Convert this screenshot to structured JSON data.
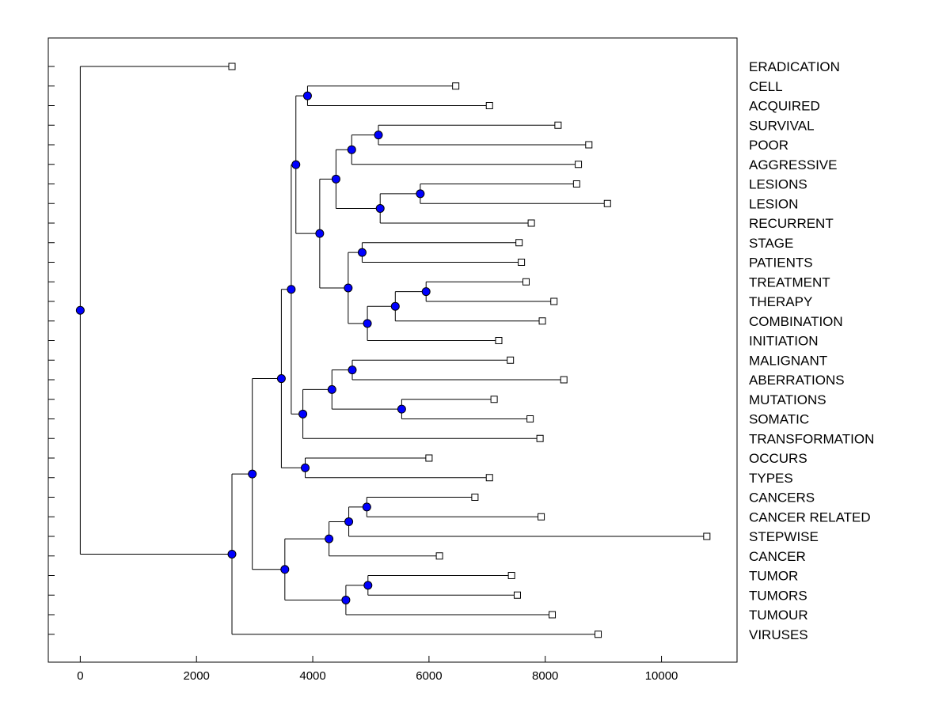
{
  "chart_data": {
    "type": "dendrogram",
    "orientation": "left-to-right",
    "xlim": [
      -550,
      11300
    ],
    "x_ticks": [
      0,
      2000,
      4000,
      6000,
      8000,
      10000
    ],
    "x_tick_labels": [
      "0",
      "2000",
      "4000",
      "6000",
      "8000",
      "10000"
    ],
    "colors": {
      "node_fill": "#0000ff",
      "line": "#000000",
      "leaf_fill": "#ffffff"
    },
    "leaves": [
      {
        "label": "ERADICATION",
        "value": 2610
      },
      {
        "label": "CELL",
        "value": 6460
      },
      {
        "label": "ACQUIRED",
        "value": 7040
      },
      {
        "label": "SURVIVAL",
        "value": 8220
      },
      {
        "label": "POOR",
        "value": 8750
      },
      {
        "label": "AGGRESSIVE",
        "value": 8570
      },
      {
        "label": "LESIONS",
        "value": 8540
      },
      {
        "label": "LESION",
        "value": 9070
      },
      {
        "label": "RECURRENT",
        "value": 7760
      },
      {
        "label": "STAGE",
        "value": 7550
      },
      {
        "label": "PATIENTS",
        "value": 7590
      },
      {
        "label": "TREATMENT",
        "value": 7670
      },
      {
        "label": "THERAPY",
        "value": 8150
      },
      {
        "label": "COMBINATION",
        "value": 7950
      },
      {
        "label": "INITIATION",
        "value": 7200
      },
      {
        "label": "MALIGNANT",
        "value": 7400
      },
      {
        "label": "ABERRATIONS",
        "value": 8320
      },
      {
        "label": "MUTATIONS",
        "value": 7120
      },
      {
        "label": "SOMATIC",
        "value": 7740
      },
      {
        "label": "TRANSFORMATION",
        "value": 7910
      },
      {
        "label": "OCCURS",
        "value": 6000
      },
      {
        "label": "TYPES",
        "value": 7040
      },
      {
        "label": "CANCERS",
        "value": 6790
      },
      {
        "label": "CANCER RELATED",
        "value": 7930
      },
      {
        "label": "STEPWISE",
        "value": 10780
      },
      {
        "label": "CANCER",
        "value": 6180
      },
      {
        "label": "TUMOR",
        "value": 7420
      },
      {
        "label": "TUMORS",
        "value": 7520
      },
      {
        "label": "TUMOUR",
        "value": 8120
      },
      {
        "label": "VIRUSES",
        "value": 8910
      }
    ],
    "merges": [
      {
        "value": 3910,
        "children": [
          "L1",
          "L2"
        ]
      },
      {
        "value": 5130,
        "children": [
          "L3",
          "L4"
        ]
      },
      {
        "value": 4670,
        "children": [
          "N1",
          "L5"
        ]
      },
      {
        "value": 5850,
        "children": [
          "L6",
          "L7"
        ]
      },
      {
        "value": 5160,
        "children": [
          "N3",
          "L8"
        ]
      },
      {
        "value": 4400,
        "children": [
          "N2",
          "N4"
        ]
      },
      {
        "value": 4850,
        "children": [
          "L9",
          "L10"
        ]
      },
      {
        "value": 5950,
        "children": [
          "L11",
          "L12"
        ]
      },
      {
        "value": 5420,
        "children": [
          "N6",
          "L13"
        ]
      },
      {
        "value": 4940,
        "children": [
          "N7",
          "L14"
        ]
      },
      {
        "value": 4610,
        "children": [
          "N5",
          "N8"
        ]
      },
      {
        "value": 4120,
        "children": [
          "N9",
          "N10"
        ]
      },
      {
        "value": 3710,
        "children": [
          "N0",
          "N11"
        ]
      },
      {
        "value": 4680,
        "children": [
          "L15",
          "L16"
        ]
      },
      {
        "value": 5530,
        "children": [
          "L17",
          "L18"
        ]
      },
      {
        "value": 4330,
        "children": [
          "N12",
          "N13"
        ]
      },
      {
        "value": 3830,
        "children": [
          "N14",
          "L19"
        ]
      },
      {
        "value": 3630,
        "children": [
          "N12x",
          "N15"
        ]
      },
      {
        "value": 3870,
        "children": [
          "L20",
          "L21"
        ]
      },
      {
        "value": 3460,
        "children": [
          "N16",
          "N17"
        ]
      },
      {
        "value": 4930,
        "children": [
          "L22",
          "L23"
        ]
      },
      {
        "value": 4620,
        "children": [
          "N19",
          "L24"
        ]
      },
      {
        "value": 4280,
        "children": [
          "N20",
          "L25"
        ]
      },
      {
        "value": 4950,
        "children": [
          "L26",
          "L27"
        ]
      },
      {
        "value": 4570,
        "children": [
          "N22",
          "L28"
        ]
      },
      {
        "value": 3520,
        "children": [
          "N21",
          "N23"
        ]
      },
      {
        "value": 2960,
        "children": [
          "N18",
          "N24"
        ]
      },
      {
        "value": 2610,
        "children": [
          "N25",
          "L29"
        ]
      },
      {
        "value": 0,
        "children": [
          "L0",
          "N26"
        ]
      }
    ]
  }
}
